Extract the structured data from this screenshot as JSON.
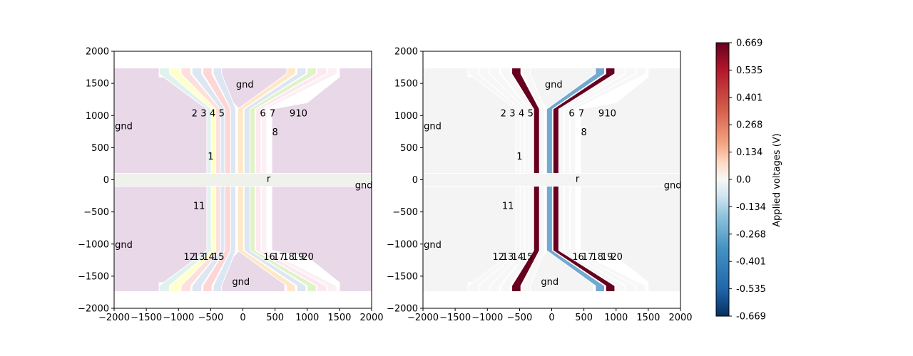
{
  "chart_data": [
    {
      "type": "heatmap",
      "subtype": "electrode-layout",
      "title": "",
      "xlabel": "",
      "ylabel": "",
      "xlim": [
        -2000,
        2000
      ],
      "ylim": [
        -2000,
        2000
      ],
      "xticks": [
        "−2000",
        "−1500",
        "−1000",
        "−500",
        "0",
        "500",
        "1000",
        "1500",
        "2000"
      ],
      "yticks": [
        "2000",
        "1500",
        "1000",
        "500",
        "0",
        "−500",
        "−1000",
        "−1500",
        "−2000"
      ],
      "electrode_labels": [
        {
          "text": "gnd",
          "x": 30,
          "y": 1490
        },
        {
          "text": "gnd",
          "x": -1850,
          "y": 840
        },
        {
          "text": "gnd",
          "x": -1850,
          "y": -1000
        },
        {
          "text": "gnd",
          "x": 1880,
          "y": -80
        },
        {
          "text": "gnd",
          "x": -30,
          "y": -1580
        },
        {
          "text": "1",
          "x": -500,
          "y": 370
        },
        {
          "text": "2",
          "x": -750,
          "y": 1040
        },
        {
          "text": "3",
          "x": -610,
          "y": 1040
        },
        {
          "text": "4",
          "x": -470,
          "y": 1040
        },
        {
          "text": "5",
          "x": -330,
          "y": 1040
        },
        {
          "text": "6",
          "x": 310,
          "y": 1040
        },
        {
          "text": "7",
          "x": 460,
          "y": 1040
        },
        {
          "text": "9",
          "x": 770,
          "y": 1040
        },
        {
          "text": "10",
          "x": 910,
          "y": 1040
        },
        {
          "text": "8",
          "x": 500,
          "y": 750
        },
        {
          "text": "r",
          "x": 400,
          "y": 20
        },
        {
          "text": "11",
          "x": -680,
          "y": -400
        },
        {
          "text": "12",
          "x": -830,
          "y": -1190
        },
        {
          "text": "13",
          "x": -680,
          "y": -1190
        },
        {
          "text": "14",
          "x": -530,
          "y": -1190
        },
        {
          "text": "15",
          "x": -380,
          "y": -1190
        },
        {
          "text": "16",
          "x": 410,
          "y": -1190
        },
        {
          "text": "17",
          "x": 560,
          "y": -1190
        },
        {
          "text": "18",
          "x": 710,
          "y": -1190
        },
        {
          "text": "19",
          "x": 860,
          "y": -1190
        },
        {
          "text": "20",
          "x": 1010,
          "y": -1190
        }
      ]
    },
    {
      "type": "heatmap",
      "subtype": "electrode-voltages",
      "title": "",
      "xlabel": "",
      "ylabel": "",
      "xlim": [
        -2000,
        2000
      ],
      "ylim": [
        -2000,
        2000
      ],
      "xticks": [
        "−2000",
        "−1500",
        "−1000",
        "−500",
        "0",
        "500",
        "1000",
        "1500",
        "2000"
      ],
      "yticks": [
        "2000",
        "1500",
        "1000",
        "500",
        "0",
        "−500",
        "−1000",
        "−1500",
        "−2000"
      ],
      "colorbar": {
        "label": "Applied voltages (V)",
        "range": [
          -0.669,
          0.669
        ],
        "ticks": [
          "0.669",
          "0.535",
          "0.401",
          "0.268",
          "0.134",
          "0.0",
          "-0.134",
          "-0.268",
          "-0.401",
          "-0.535",
          "-0.669"
        ],
        "colormap": "RdBu_r",
        "colors": {
          "high": "#67001f",
          "mid": "#f7f7f7",
          "low": "#053061"
        }
      },
      "electrode_labels": [
        {
          "text": "gnd",
          "x": 30,
          "y": 1490
        },
        {
          "text": "gnd",
          "x": -1850,
          "y": 840
        },
        {
          "text": "gnd",
          "x": -1850,
          "y": -1000
        },
        {
          "text": "gnd",
          "x": 1880,
          "y": -80
        },
        {
          "text": "gnd",
          "x": -30,
          "y": -1580
        },
        {
          "text": "1",
          "x": -500,
          "y": 370
        },
        {
          "text": "2",
          "x": -750,
          "y": 1040
        },
        {
          "text": "3",
          "x": -610,
          "y": 1040
        },
        {
          "text": "4",
          "x": -470,
          "y": 1040
        },
        {
          "text": "5",
          "x": -330,
          "y": 1040
        },
        {
          "text": "6",
          "x": 310,
          "y": 1040
        },
        {
          "text": "7",
          "x": 460,
          "y": 1040
        },
        {
          "text": "9",
          "x": 770,
          "y": 1040
        },
        {
          "text": "10",
          "x": 910,
          "y": 1040
        },
        {
          "text": "8",
          "x": 500,
          "y": 750
        },
        {
          "text": "r",
          "x": 400,
          "y": 20
        },
        {
          "text": "11",
          "x": -680,
          "y": -400
        },
        {
          "text": "12",
          "x": -830,
          "y": -1190
        },
        {
          "text": "13",
          "x": -680,
          "y": -1190
        },
        {
          "text": "14",
          "x": -530,
          "y": -1190
        },
        {
          "text": "15",
          "x": -380,
          "y": -1190
        },
        {
          "text": "16",
          "x": 410,
          "y": -1190
        },
        {
          "text": "17",
          "x": 560,
          "y": -1190
        },
        {
          "text": "18",
          "x": 710,
          "y": -1190
        },
        {
          "text": "19",
          "x": 860,
          "y": -1190
        },
        {
          "text": "20",
          "x": 1010,
          "y": -1190
        }
      ],
      "electrode_voltages": [
        {
          "electrode": "upper-left-outer",
          "voltage": 0.669
        },
        {
          "electrode": "upper-right-inner",
          "voltage": -0.268
        },
        {
          "electrode": "upper-right-outer",
          "voltage": 0.669
        },
        {
          "electrode": "lower-left-outer",
          "voltage": 0.669
        },
        {
          "electrode": "lower-right-inner",
          "voltage": -0.268
        },
        {
          "electrode": "lower-right-outer",
          "voltage": 0.669
        }
      ]
    }
  ]
}
